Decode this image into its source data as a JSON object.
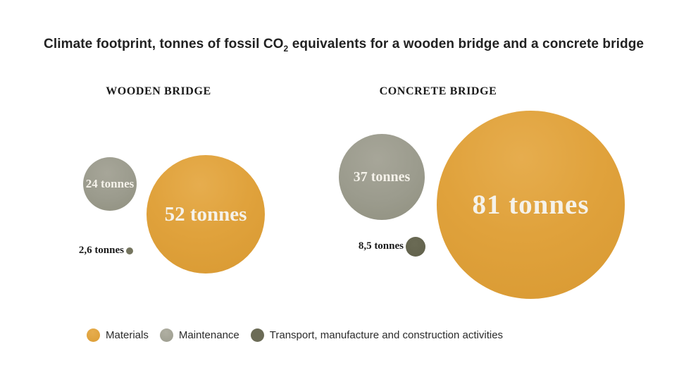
{
  "title": {
    "pre": "Climate footprint, tonnes of fossil CO",
    "sub": "2",
    "post": " equivalents for a wooden bridge and a concrete bridge"
  },
  "wooden": {
    "header": "WOODEN BRIDGE",
    "materials_label": "52 tonnes",
    "maintenance_label": "24 tonnes",
    "transport_label": "2,6 tonnes"
  },
  "concrete": {
    "header": "CONCRETE BRIDGE",
    "materials_label": "81 tonnes",
    "maintenance_label": "37 tonnes",
    "transport_label": "8,5 tonnes"
  },
  "legend": {
    "items": [
      {
        "label": "Materials",
        "color": "#e0a23c",
        "icon": "materials-dot"
      },
      {
        "label": "Maintenance",
        "color": "#9b9b8d",
        "icon": "maintenance-dot"
      },
      {
        "label": "Transport, manufacture and construction activities",
        "color": "#666651",
        "icon": "transport-dot"
      }
    ]
  },
  "colors": {
    "materials": "#e0a23c",
    "maintenance": "#9b9b8d",
    "transport_wooden": "#75755f",
    "transport_concrete": "#64644e",
    "bubble_text": "#f5f2ea",
    "title_text": "#222222"
  },
  "chart_data": {
    "type": "bubble",
    "title": "Climate footprint, tonnes of fossil CO2 equivalents for a wooden bridge and a concrete bridge",
    "unit": "tonnes of fossil CO2 equivalents",
    "categories": [
      "Materials",
      "Maintenance",
      "Transport, manufacture and construction activities"
    ],
    "series": [
      {
        "name": "WOODEN BRIDGE",
        "values": [
          52,
          24,
          2.6
        ]
      },
      {
        "name": "CONCRETE BRIDGE",
        "values": [
          81,
          37,
          8.5
        ]
      }
    ],
    "value_labels": [
      [
        "52 tonnes",
        "24 tonnes",
        "2,6 tonnes"
      ],
      [
        "81 tonnes",
        "37 tonnes",
        "8,5 tonnes"
      ]
    ],
    "colors": {
      "Materials": "#e0a23c",
      "Maintenance": "#9b9b8d",
      "Transport, manufacture and construction activities": "#666651"
    },
    "bubble_scale": "radius proportional to value, ~1.64 px per tonne",
    "legend_position": "bottom",
    "grid": false,
    "axes": false
  }
}
